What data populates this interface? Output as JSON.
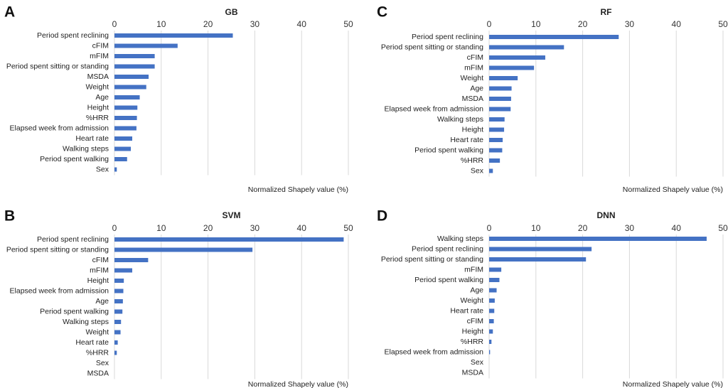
{
  "chart_data": [
    {
      "panel_label": "A",
      "type": "bar",
      "orientation": "horizontal",
      "title": "GB",
      "xlabel": "Normalized Shapely value (%)",
      "xlim": [
        0,
        50
      ],
      "xticks": [
        0,
        10,
        20,
        30,
        40,
        50
      ],
      "grid": true,
      "color": "#4472C4",
      "categories": [
        "Period spent reclining",
        "cFIM",
        "mFIM",
        "Period spent sitting or standing",
        "MSDA",
        "Weight",
        "Age",
        "Height",
        "%HRR",
        "Elapsed week from admission",
        "Heart rate",
        "Walking steps",
        "Period spent walking",
        "Sex"
      ],
      "values": [
        25.3,
        13.5,
        8.6,
        8.6,
        7.3,
        6.8,
        5.4,
        4.9,
        4.8,
        4.7,
        3.8,
        3.5,
        2.7,
        0.5
      ]
    },
    {
      "panel_label": "C",
      "type": "bar",
      "orientation": "horizontal",
      "title": "RF",
      "xlabel": "Normalized Shapely value (%)",
      "xlim": [
        0,
        50
      ],
      "xticks": [
        0,
        10,
        20,
        30,
        40,
        50
      ],
      "grid": true,
      "color": "#4472C4",
      "categories": [
        "Period spent reclining",
        "Period spent sitting or standing",
        "cFIM",
        "mFIM",
        "Weight",
        "Age",
        "MSDA",
        "Elapsed week from admission",
        "Walking steps",
        "Height",
        "Heart rate",
        "Period spent walking",
        "%HRR",
        "Sex"
      ],
      "values": [
        27.7,
        16.0,
        12.0,
        9.6,
        6.1,
        4.8,
        4.7,
        4.6,
        3.3,
        3.2,
        2.9,
        2.8,
        2.3,
        0.8
      ]
    },
    {
      "panel_label": "B",
      "type": "bar",
      "orientation": "horizontal",
      "title": "SVM",
      "xlabel": "Normalized Shapely value (%)",
      "xlim": [
        0,
        50
      ],
      "xticks": [
        0,
        10,
        20,
        30,
        40,
        50
      ],
      "grid": true,
      "color": "#4472C4",
      "categories": [
        "Period spent reclining",
        "Period spent sitting or standing",
        "cFIM",
        "mFIM",
        "Height",
        "Elapsed week from admission",
        "Age",
        "Period spent walking",
        "Walking steps",
        "Weight",
        "Heart rate",
        "%HRR",
        "Sex",
        "MSDA"
      ],
      "values": [
        49.0,
        29.5,
        7.2,
        3.8,
        2.0,
        1.9,
        1.8,
        1.7,
        1.4,
        1.3,
        0.7,
        0.5,
        0.0,
        0.0
      ]
    },
    {
      "panel_label": "D",
      "type": "bar",
      "orientation": "horizontal",
      "title": "DNN",
      "xlabel": "Normalized Shapely value (%)",
      "xlim": [
        0,
        50
      ],
      "xticks": [
        0,
        10,
        20,
        30,
        40,
        50
      ],
      "grid": true,
      "color": "#4472C4",
      "categories": [
        "Walking steps",
        "Period spent reclining",
        "Period spent sitting or standing",
        "mFIM",
        "Period spent walking",
        "Age",
        "Weight",
        "Heart rate",
        "cFIM",
        "Height",
        "%HRR",
        "Elapsed week from admission",
        "Sex",
        "MSDA"
      ],
      "values": [
        46.5,
        21.9,
        20.7,
        2.6,
        2.2,
        1.6,
        1.2,
        1.1,
        1.0,
        0.8,
        0.5,
        0.2,
        0.0,
        0.0
      ]
    }
  ]
}
